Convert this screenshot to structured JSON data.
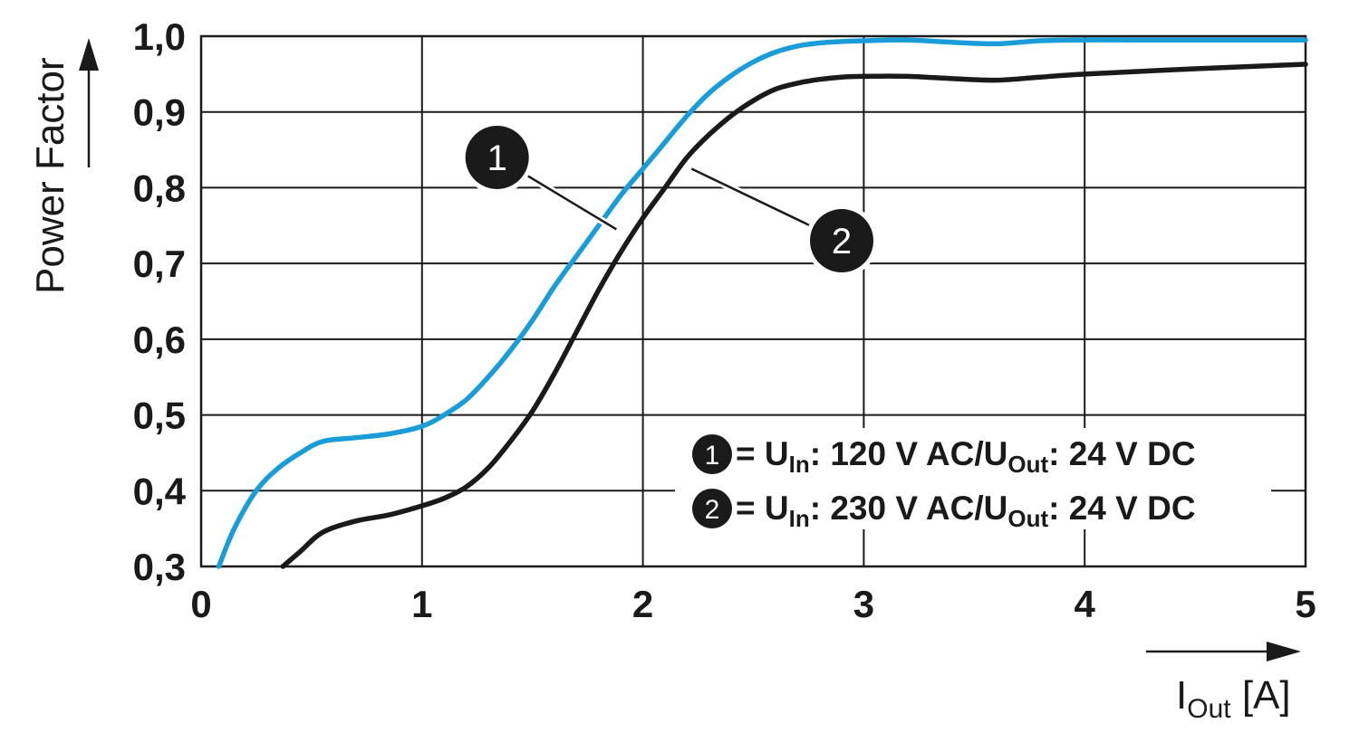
{
  "chart_data": {
    "type": "line",
    "xlabel": {
      "main": "I",
      "sub": "Out",
      "unit": " [A]"
    },
    "ylabel": "Power Factor",
    "xlim": [
      0,
      5
    ],
    "ylim": [
      0.3,
      1.0
    ],
    "x_ticks": [
      0,
      1,
      2,
      3,
      4,
      5
    ],
    "y_ticks": [
      0.3,
      0.4,
      0.5,
      0.6,
      0.7,
      0.8,
      0.9,
      1.0
    ],
    "x_tick_labels": [
      "0",
      "1",
      "2",
      "3",
      "4",
      "5"
    ],
    "y_tick_labels": [
      "0,3",
      "0,4",
      "0,5",
      "0,6",
      "0,7",
      "0,8",
      "0,9",
      "1,0"
    ],
    "grid": true,
    "legend_position": "bottom-right",
    "series": [
      {
        "marker": "1",
        "color": "#1a9cd8",
        "legend": {
          "prefix": " = U",
          "sub1": "In",
          "mid": ": 120 V AC/U",
          "sub2": "Out",
          "suffix": ": 24 V DC"
        },
        "x": [
          0.08,
          0.15,
          0.25,
          0.35,
          0.45,
          0.55,
          0.7,
          0.85,
          1.0,
          1.1,
          1.2,
          1.3,
          1.4,
          1.5,
          1.6,
          1.7,
          1.8,
          1.9,
          2.0,
          2.1,
          2.2,
          2.3,
          2.4,
          2.5,
          2.6,
          2.7,
          2.8,
          2.9,
          3.0,
          3.2,
          3.4,
          3.6,
          3.8,
          4.0,
          4.2,
          4.5,
          5.0
        ],
        "y": [
          0.3,
          0.35,
          0.4,
          0.43,
          0.45,
          0.465,
          0.47,
          0.475,
          0.485,
          0.5,
          0.52,
          0.55,
          0.585,
          0.625,
          0.67,
          0.71,
          0.75,
          0.79,
          0.825,
          0.86,
          0.895,
          0.925,
          0.948,
          0.966,
          0.979,
          0.987,
          0.991,
          0.993,
          0.994,
          0.995,
          0.992,
          0.99,
          0.994,
          0.995,
          0.995,
          0.995,
          0.995
        ]
      },
      {
        "marker": "2",
        "color": "#1a1a1a",
        "legend": {
          "prefix": " = U",
          "sub1": "In",
          "mid": ": 230 V AC/U",
          "sub2": "Out",
          "suffix": ": 24 V DC"
        },
        "x": [
          0.37,
          0.45,
          0.55,
          0.7,
          0.85,
          1.0,
          1.1,
          1.2,
          1.3,
          1.4,
          1.5,
          1.6,
          1.7,
          1.8,
          1.9,
          2.0,
          2.1,
          2.2,
          2.3,
          2.4,
          2.5,
          2.6,
          2.7,
          2.8,
          2.9,
          3.0,
          3.2,
          3.4,
          3.6,
          3.8,
          4.0,
          4.5,
          5.0
        ],
        "y": [
          0.3,
          0.32,
          0.345,
          0.36,
          0.368,
          0.38,
          0.39,
          0.405,
          0.43,
          0.465,
          0.505,
          0.555,
          0.61,
          0.665,
          0.715,
          0.76,
          0.8,
          0.84,
          0.87,
          0.895,
          0.915,
          0.93,
          0.938,
          0.943,
          0.946,
          0.947,
          0.947,
          0.944,
          0.942,
          0.946,
          0.95,
          0.957,
          0.963
        ]
      }
    ],
    "annotations": [
      {
        "marker": "1",
        "label_at": [
          1.34,
          0.84
        ],
        "point_at": [
          1.88,
          0.745
        ]
      },
      {
        "marker": "2",
        "label_at": [
          2.9,
          0.73
        ],
        "point_at": [
          2.22,
          0.825
        ]
      }
    ]
  }
}
